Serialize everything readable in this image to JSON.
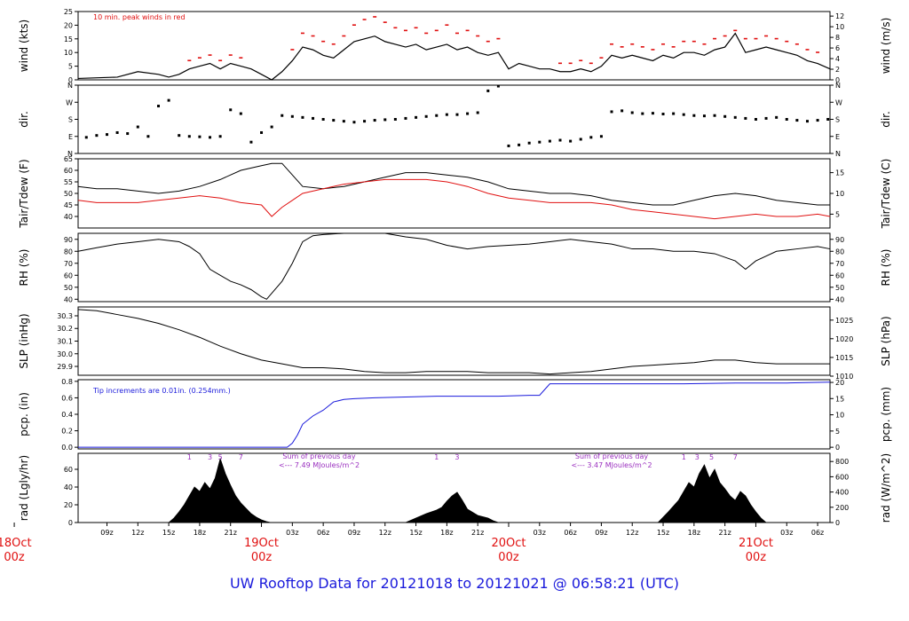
{
  "footer_title": "UW Rooftop Data for 20121018  to  20121021 @ 06:58:21  (UTC)",
  "colors": {
    "black": "#000000",
    "red": "#e01010",
    "blue": "#1a1adb",
    "purple": "#9a2fbf"
  },
  "x_axis": {
    "hour_ticks": [
      {
        "h": 9,
        "label": "09z"
      },
      {
        "h": 12,
        "label": "12z"
      },
      {
        "h": 15,
        "label": "15z"
      },
      {
        "h": 18,
        "label": "18z"
      },
      {
        "h": 21,
        "label": "21z"
      },
      {
        "h": 27,
        "label": "03z"
      },
      {
        "h": 30,
        "label": "06z"
      },
      {
        "h": 33,
        "label": "09z"
      },
      {
        "h": 36,
        "label": "12z"
      },
      {
        "h": 39,
        "label": "15z"
      },
      {
        "h": 42,
        "label": "18z"
      },
      {
        "h": 45,
        "label": "21z"
      },
      {
        "h": 51,
        "label": "03z"
      },
      {
        "h": 54,
        "label": "06z"
      },
      {
        "h": 57,
        "label": "09z"
      },
      {
        "h": 60,
        "label": "12z"
      },
      {
        "h": 63,
        "label": "15z"
      },
      {
        "h": 66,
        "label": "18z"
      },
      {
        "h": 69,
        "label": "21z"
      },
      {
        "h": 75,
        "label": "03z"
      },
      {
        "h": 78,
        "label": "06z"
      }
    ],
    "day_labels": [
      {
        "h": 0,
        "date": "18Oct",
        "time": "00z"
      },
      {
        "h": 24,
        "date": "19Oct",
        "time": "00z"
      },
      {
        "h": 48,
        "date": "20Oct",
        "time": "00z"
      },
      {
        "h": 72,
        "date": "21Oct",
        "time": "00z"
      }
    ],
    "xlim_hours": [
      6.2,
      79.2
    ]
  },
  "chart_data": [
    {
      "type": "line",
      "ylabel": "wind (kts)",
      "ylabel_right": "wind (m/s)",
      "annotation": "10 min. peak winds in red",
      "ylim": [
        0,
        25
      ],
      "yticks": [
        0,
        5,
        10,
        15,
        20,
        25
      ],
      "right_ticks": [
        {
          "v": 0,
          "label": "0"
        },
        {
          "v": 3.89,
          "label": "2"
        },
        {
          "v": 7.78,
          "label": "4"
        },
        {
          "v": 11.66,
          "label": "6"
        },
        {
          "v": 15.55,
          "label": "8"
        },
        {
          "v": 19.44,
          "label": "10"
        },
        {
          "v": 23.33,
          "label": "12"
        }
      ],
      "series": [
        {
          "role": "mean",
          "x": [
            6.2,
            10,
            12,
            14,
            15,
            16,
            17,
            18,
            19,
            20,
            21,
            22,
            23,
            24,
            25,
            26,
            27,
            28,
            29,
            30,
            31,
            32,
            33,
            34,
            35,
            36,
            37,
            38,
            39,
            40,
            41,
            42,
            43,
            44,
            45,
            46,
            47,
            47.5,
            48,
            49,
            50,
            51,
            52,
            53,
            54,
            55,
            56,
            57,
            58,
            59,
            60,
            61,
            62,
            63,
            64,
            65,
            66,
            67,
            68,
            69,
            70,
            71,
            72,
            73,
            74,
            75,
            76,
            77,
            78,
            79.2
          ],
          "values": [
            0.5,
            1,
            3,
            2,
            1,
            2,
            4,
            5,
            6,
            4,
            6,
            5,
            4,
            2,
            0,
            3,
            7,
            12,
            11,
            9,
            8,
            11,
            14,
            15,
            16,
            14,
            13,
            12,
            13,
            11,
            12,
            13,
            11,
            12,
            10,
            9,
            10,
            7,
            4,
            6,
            5,
            4,
            4,
            3,
            3,
            4,
            3,
            5,
            9,
            8,
            9,
            8,
            7,
            9,
            8,
            10,
            10,
            9,
            11,
            12,
            17,
            10,
            11,
            12,
            11,
            10,
            9,
            7,
            6,
            4
          ]
        },
        {
          "role": "peak",
          "x": [
            17,
            18,
            19,
            20,
            21,
            22,
            27,
            28,
            29,
            30,
            31,
            32,
            33,
            34,
            35,
            36,
            37,
            38,
            39,
            40,
            41,
            42,
            43,
            44,
            45,
            46,
            47,
            53,
            54,
            55,
            56,
            57,
            58,
            59,
            60,
            61,
            62,
            63,
            64,
            65,
            66,
            67,
            68,
            69,
            70,
            71,
            72,
            73,
            74,
            75,
            76,
            77,
            78
          ],
          "values": [
            7,
            8,
            9,
            7,
            9,
            8,
            11,
            17,
            16,
            14,
            13,
            16,
            20,
            22,
            23,
            21,
            19,
            18,
            19,
            17,
            18,
            20,
            17,
            18,
            16,
            14,
            15,
            6,
            6,
            7,
            6,
            8,
            13,
            12,
            13,
            12,
            11,
            13,
            12,
            14,
            14,
            13,
            15,
            16,
            18,
            15,
            15,
            16,
            15,
            14,
            13,
            11,
            10
          ]
        }
      ]
    },
    {
      "type": "scatter",
      "ylabel": "dir.",
      "ylabel_right": "dir.",
      "ylim": [
        0,
        360
      ],
      "ticks": [
        {
          "v": 0,
          "label": "N"
        },
        {
          "v": 90,
          "label": "E"
        },
        {
          "v": 180,
          "label": "S"
        },
        {
          "v": 270,
          "label": "W"
        },
        {
          "v": 360,
          "label": "N"
        }
      ],
      "x": [
        7,
        8,
        9,
        10,
        11,
        12,
        13,
        14,
        15,
        16,
        17,
        18,
        19,
        20,
        21,
        22,
        23,
        24,
        25,
        26,
        27,
        28,
        29,
        30,
        31,
        32,
        33,
        34,
        35,
        36,
        37,
        38,
        39,
        40,
        41,
        42,
        43,
        44,
        45,
        46,
        47,
        48,
        49,
        50,
        51,
        52,
        53,
        54,
        55,
        56,
        57,
        58,
        59,
        60,
        61,
        62,
        63,
        64,
        65,
        66,
        67,
        68,
        69,
        70,
        71,
        72,
        73,
        74,
        75,
        76,
        77,
        78,
        79
      ],
      "values": [
        85,
        95,
        100,
        110,
        105,
        140,
        90,
        250,
        280,
        95,
        90,
        88,
        85,
        90,
        230,
        210,
        60,
        110,
        140,
        200,
        195,
        190,
        185,
        180,
        175,
        170,
        165,
        170,
        175,
        178,
        180,
        185,
        190,
        195,
        200,
        205,
        205,
        210,
        215,
        330,
        355,
        40,
        45,
        55,
        60,
        65,
        70,
        65,
        75,
        85,
        90,
        220,
        225,
        215,
        210,
        212,
        208,
        210,
        205,
        200,
        198,
        200,
        195,
        190,
        185,
        180,
        185,
        190,
        180,
        175,
        170,
        175,
        180
      ]
    },
    {
      "type": "line",
      "ylabel": "Tair/Tdew (F)",
      "ylabel_right": "Tair/Tdew (C)",
      "ylim": [
        35,
        65
      ],
      "yticks": [
        40,
        45,
        50,
        55,
        60,
        65
      ],
      "right_ticks": [
        {
          "v": 41,
          "label": "5"
        },
        {
          "v": 50,
          "label": "10"
        },
        {
          "v": 59,
          "label": "15"
        }
      ],
      "x": [
        6.2,
        8,
        10,
        12,
        14,
        16,
        18,
        20,
        22,
        24,
        25,
        26,
        27,
        28,
        30,
        32,
        34,
        36,
        38,
        40,
        42,
        44,
        46,
        48,
        50,
        52,
        54,
        56,
        58,
        60,
        62,
        64,
        66,
        68,
        70,
        72,
        74,
        76,
        78,
        79.2
      ],
      "series": [
        {
          "name": "Tair",
          "values": [
            53,
            52,
            52,
            51,
            50,
            51,
            53,
            56,
            60,
            62,
            63,
            63,
            58,
            53,
            52,
            53,
            55,
            57,
            59,
            59,
            58,
            57,
            55,
            52,
            51,
            50,
            50,
            49,
            47,
            46,
            45,
            45,
            47,
            49,
            50,
            49,
            47,
            46,
            45,
            45
          ]
        },
        {
          "name": "Tdew",
          "values": [
            47,
            46,
            46,
            46,
            47,
            48,
            49,
            48,
            46,
            45,
            40,
            44,
            47,
            50,
            52,
            54,
            55,
            56,
            56,
            56,
            55,
            53,
            50,
            48,
            47,
            46,
            46,
            46,
            45,
            43,
            42,
            41,
            40,
            39,
            40,
            41,
            40,
            40,
            41,
            40
          ]
        }
      ]
    },
    {
      "type": "line",
      "ylabel": "RH (%)",
      "ylabel_right": "RH (%)",
      "ylim": [
        38,
        95
      ],
      "yticks": [
        40,
        50,
        60,
        70,
        80,
        90
      ],
      "right_ticks": [
        {
          "v": 40,
          "label": "40"
        },
        {
          "v": 50,
          "label": "50"
        },
        {
          "v": 60,
          "label": "60"
        },
        {
          "v": 70,
          "label": "70"
        },
        {
          "v": 80,
          "label": "80"
        },
        {
          "v": 90,
          "label": "90"
        }
      ],
      "x": [
        6.2,
        8,
        10,
        12,
        14,
        16,
        17,
        18,
        19,
        20,
        21,
        22,
        23,
        24,
        24.5,
        25,
        26,
        27,
        28,
        29,
        30,
        32,
        34,
        36,
        38,
        40,
        42,
        44,
        46,
        48,
        50,
        52,
        54,
        56,
        58,
        60,
        62,
        64,
        66,
        68,
        70,
        71,
        72,
        74,
        76,
        78,
        79.2
      ],
      "values": [
        80,
        83,
        86,
        88,
        90,
        88,
        84,
        78,
        65,
        60,
        55,
        52,
        48,
        42,
        40,
        45,
        55,
        70,
        88,
        93,
        94,
        95,
        95,
        95,
        92,
        90,
        85,
        82,
        84,
        85,
        86,
        88,
        90,
        88,
        86,
        82,
        82,
        80,
        80,
        78,
        72,
        65,
        72,
        80,
        82,
        84,
        82
      ]
    },
    {
      "type": "line",
      "ylabel": "SLP (inHg)",
      "ylabel_right": "SLP (hPa)",
      "ylim": [
        29.83,
        30.37
      ],
      "yticks": [
        29.9,
        30.0,
        30.1,
        30.2,
        30.3
      ],
      "right_ticks": [
        {
          "v": 29.823,
          "label": "1010"
        },
        {
          "v": 29.971,
          "label": "1015"
        },
        {
          "v": 30.119,
          "label": "1020"
        },
        {
          "v": 30.266,
          "label": "1025"
        }
      ],
      "x": [
        6.2,
        8,
        10,
        12,
        14,
        16,
        18,
        20,
        22,
        24,
        26,
        28,
        30,
        32,
        34,
        36,
        38,
        40,
        42,
        44,
        46,
        48,
        50,
        52,
        54,
        56,
        58,
        60,
        62,
        64,
        66,
        68,
        70,
        72,
        74,
        76,
        78,
        79.2
      ],
      "values": [
        30.35,
        30.34,
        30.31,
        30.28,
        30.24,
        30.19,
        30.13,
        30.06,
        30.0,
        29.95,
        29.92,
        29.89,
        29.89,
        29.88,
        29.86,
        29.85,
        29.85,
        29.86,
        29.86,
        29.86,
        29.85,
        29.85,
        29.85,
        29.84,
        29.85,
        29.86,
        29.88,
        29.9,
        29.91,
        29.92,
        29.93,
        29.95,
        29.95,
        29.93,
        29.92,
        29.92,
        29.92,
        29.92
      ]
    },
    {
      "type": "line",
      "ylabel": "pcp. (in)",
      "ylabel_right": "pcp. (mm)",
      "annotation": "Tip increments are 0.01in. (0.254mm.)",
      "ylim": [
        -0.02,
        0.82
      ],
      "yticks": [
        0.0,
        0.2,
        0.4,
        0.6,
        0.8
      ],
      "right_ticks": [
        {
          "v": 0,
          "label": "0"
        },
        {
          "v": 0.197,
          "label": "5"
        },
        {
          "v": 0.394,
          "label": "10"
        },
        {
          "v": 0.591,
          "label": "15"
        },
        {
          "v": 0.787,
          "label": "20"
        }
      ],
      "x": [
        6.2,
        26.5,
        27,
        27.5,
        28,
        29,
        30,
        31,
        32,
        33,
        35,
        38,
        41,
        44,
        47,
        50,
        51,
        51.5,
        52,
        55,
        60,
        65,
        70,
        75,
        79.2
      ],
      "values": [
        0,
        0,
        0.05,
        0.15,
        0.28,
        0.38,
        0.45,
        0.55,
        0.58,
        0.59,
        0.6,
        0.61,
        0.62,
        0.62,
        0.62,
        0.63,
        0.63,
        0.7,
        0.77,
        0.77,
        0.77,
        0.77,
        0.78,
        0.78,
        0.79
      ]
    },
    {
      "type": "area",
      "ylabel": "rad (Lgly/hr)",
      "ylabel_right": "rad (W/m^2)",
      "ylim": [
        0,
        78
      ],
      "yticks": [
        0,
        20,
        40,
        60
      ],
      "right_ticks": [
        {
          "v": 0,
          "label": "0"
        },
        {
          "v": 17.2,
          "label": "200"
        },
        {
          "v": 34.4,
          "label": "400"
        },
        {
          "v": 51.6,
          "label": "600"
        },
        {
          "v": 68.8,
          "label": "800"
        }
      ],
      "x": [
        6.2,
        15,
        15.5,
        16,
        16.5,
        17,
        17.5,
        18,
        18.5,
        19,
        19.5,
        20,
        20.5,
        21,
        21.5,
        22,
        22.5,
        23,
        23.5,
        24,
        24.5,
        24.9,
        38,
        39,
        40,
        41,
        41.5,
        42,
        42.5,
        43,
        43.5,
        44,
        45,
        46,
        46.5,
        47,
        62.5,
        63.5,
        64.5,
        65,
        65.5,
        66,
        66.5,
        67,
        67.5,
        68,
        68.5,
        69,
        69.5,
        70,
        70.5,
        71,
        71.5,
        72,
        72.5,
        73,
        79.2
      ],
      "values": [
        0,
        0,
        5,
        12,
        20,
        30,
        40,
        35,
        45,
        38,
        50,
        72,
        55,
        42,
        30,
        22,
        16,
        10,
        6,
        3,
        1,
        0,
        0,
        5,
        10,
        14,
        17,
        24,
        30,
        34,
        25,
        15,
        8,
        5,
        2,
        0,
        0,
        12,
        25,
        35,
        45,
        40,
        55,
        65,
        50,
        60,
        45,
        38,
        30,
        25,
        35,
        30,
        20,
        12,
        5,
        0,
        0
      ],
      "day_sums": [
        {
          "h": 29.6,
          "line1": "Sum of previous day",
          "line2": "<--- 7.49 MJoules/m^2"
        },
        {
          "h": 58.0,
          "line1": "Sum of previous day",
          "line2": "<--- 3.47 MJoules/m^2"
        }
      ],
      "hour_marks": [
        {
          "h": 17,
          "label": "1"
        },
        {
          "h": 19,
          "label": "3"
        },
        {
          "h": 20,
          "label": "5"
        },
        {
          "h": 22,
          "label": "7"
        },
        {
          "h": 41,
          "label": "1"
        },
        {
          "h": 43,
          "label": "3"
        },
        {
          "h": 65,
          "label": "1"
        },
        {
          "h": 66.3,
          "label": "3"
        },
        {
          "h": 67.7,
          "label": "5"
        },
        {
          "h": 70,
          "label": "7"
        }
      ]
    }
  ]
}
